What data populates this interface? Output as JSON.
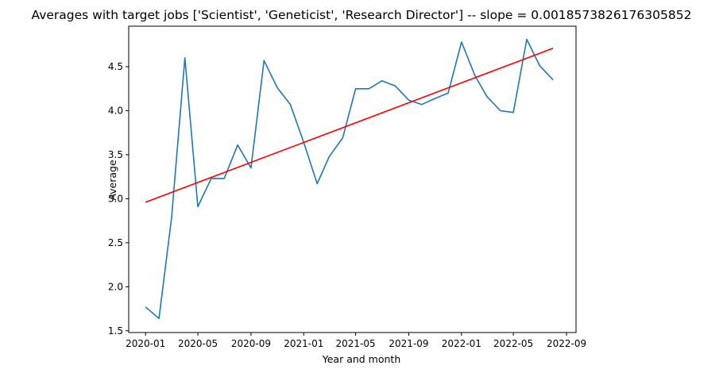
{
  "chart_data": {
    "type": "line",
    "title": "Averages with target jobs ['Scientist', 'Geneticist', 'Research Director'] -- slope = 0.0018573826176305852",
    "xlabel": "Year and month",
    "ylabel": "Average",
    "x_tick_labels": [
      "2020-01",
      "2020-05",
      "2020-09",
      "2021-01",
      "2021-05",
      "2021-09",
      "2022-01",
      "2022-05",
      "2022-09"
    ],
    "y_ticks": [
      1.5,
      2.0,
      2.5,
      3.0,
      3.5,
      4.0,
      4.5
    ],
    "y_tick_labels": [
      "1.5",
      "2.0",
      "2.5",
      "3.0",
      "3.5",
      "4.0",
      "4.5"
    ],
    "xlim": [
      "2019-11-23",
      "2022-09-23"
    ],
    "ylim": [
      1.48,
      4.96
    ],
    "grid": false,
    "legend": "none",
    "series": [
      {
        "color": "#1f77b4",
        "x": [
          "2020-01",
          "2020-02",
          "2020-03",
          "2020-04",
          "2020-05",
          "2020-06",
          "2020-07",
          "2020-08",
          "2020-09",
          "2020-10",
          "2020-11",
          "2020-12",
          "2021-01",
          "2021-02",
          "2021-03",
          "2021-04",
          "2021-05",
          "2021-06",
          "2021-07",
          "2021-08",
          "2021-09",
          "2021-10",
          "2021-11",
          "2021-12",
          "2022-01",
          "2022-02",
          "2022-03",
          "2022-04",
          "2022-05",
          "2022-06",
          "2022-07",
          "2022-08"
        ],
        "values": [
          1.77,
          1.64,
          2.78,
          4.6,
          2.91,
          3.23,
          3.23,
          3.61,
          3.35,
          4.57,
          4.26,
          4.07,
          3.64,
          3.17,
          3.48,
          3.69,
          4.25,
          4.25,
          4.34,
          4.28,
          4.12,
          4.07,
          4.14,
          4.2,
          4.78,
          4.4,
          4.16,
          4.0,
          3.98,
          4.81,
          4.51,
          4.35
        ]
      },
      {
        "color": "#ff0000",
        "x": [
          "2020-01",
          "2022-08"
        ],
        "values": [
          2.96,
          4.71
        ]
      }
    ]
  }
}
